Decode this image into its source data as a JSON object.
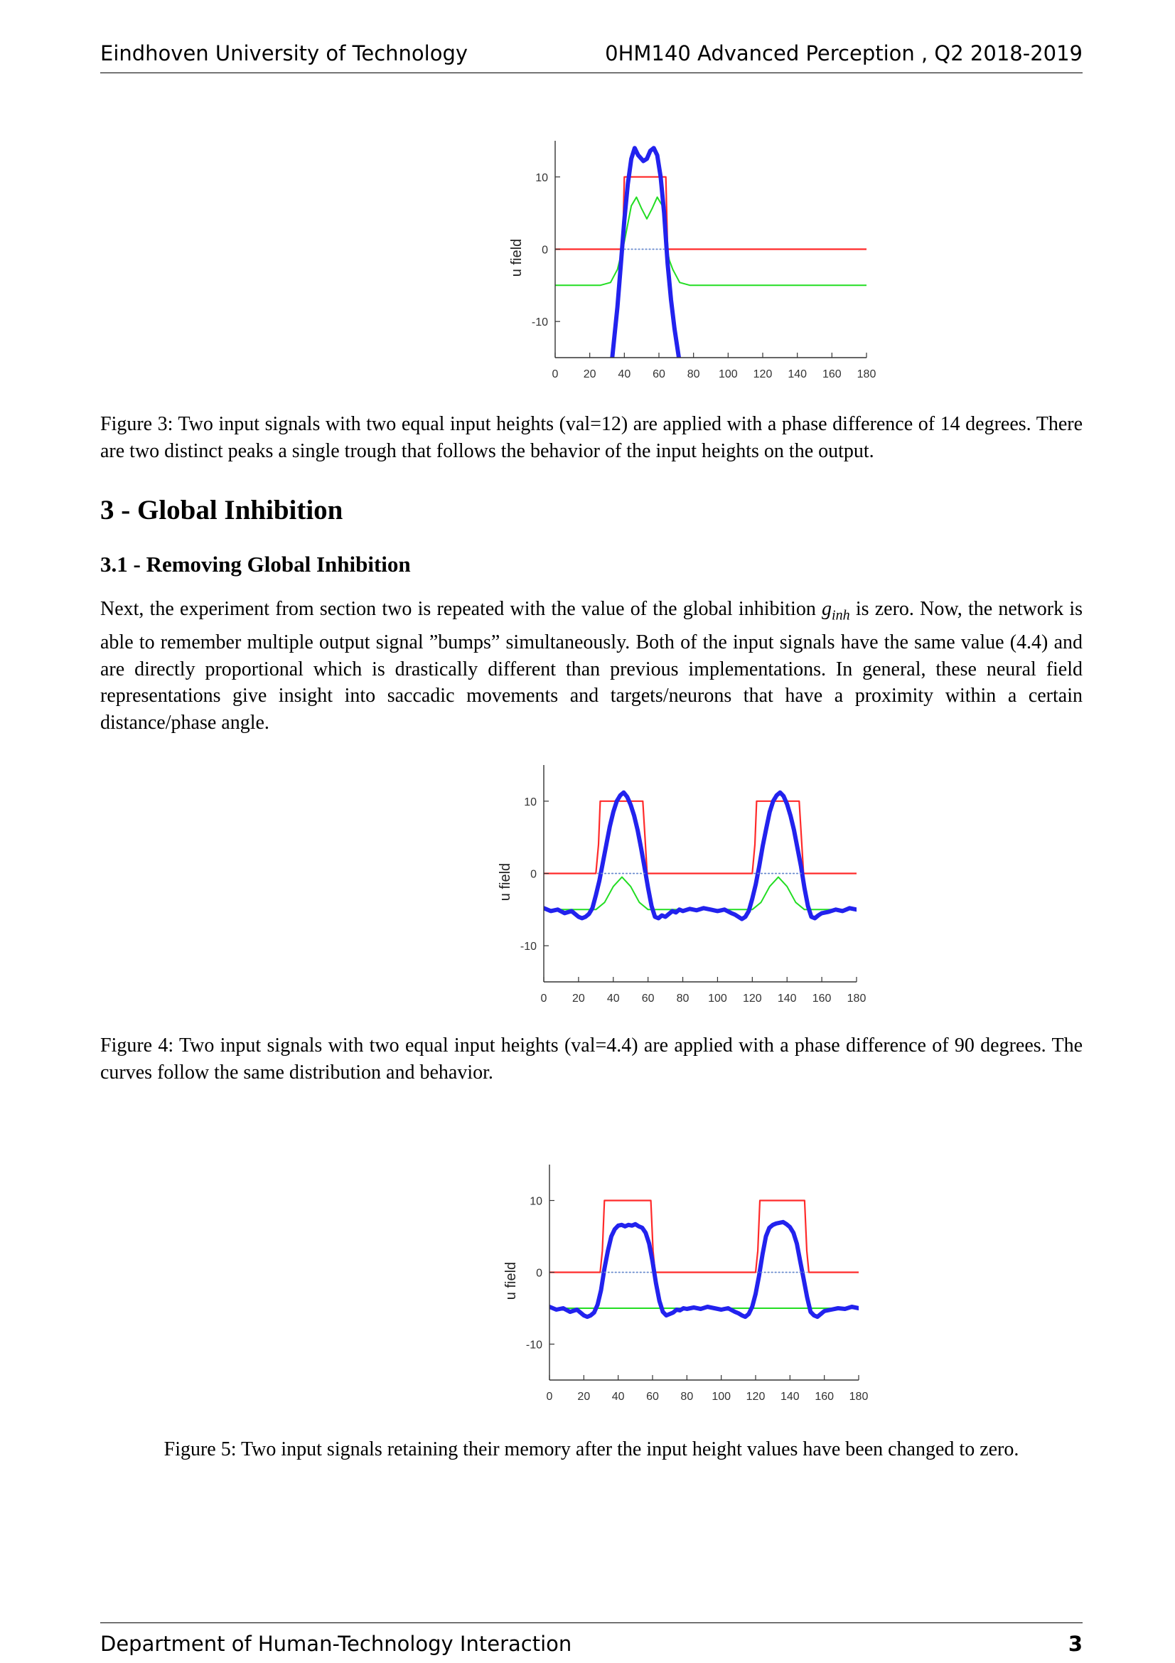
{
  "header": {
    "left": "Eindhoven University of Technology",
    "right": "0HM140 Advanced Perception , Q2 2018-2019"
  },
  "footer": {
    "left": "Department of Human-Technology Interaction",
    "page": "3"
  },
  "sections": {
    "section_title": "3 - Global Inhibition",
    "subsection_title": "3.1 - Removing Global Inhibition",
    "paragraph_pre": "Next, the experiment from section two is repeated with the value of the global inhibition ",
    "symbol_base": "g",
    "symbol_sub": "inh",
    "paragraph_post": " is zero.  Now, the network is able to remember multiple output signal ”bumps” simultaneously.  Both of the input signals have the same value (4.4) and are directly proportional which is drastically different than previous implementations.  In general, these neural field representations give insight into saccadic movements and targets/neurons that have a proximity within a certain distance/phase angle."
  },
  "captions": {
    "fig3": "Figure 3:  Two input signals with two equal input heights (val=12) are applied with a phase difference of 14 degrees. There are two distinct peaks a single trough that follows the behavior of the input heights on the output.",
    "fig4": "Figure 4:  Two input signals with two equal input heights (val=4.4) are applied with a phase difference of 90 degrees. The curves follow the same distribution and behavior.",
    "fig5": "Figure 5: Two input signals retaining their memory after the input height values have been changed to zero."
  },
  "chart_data": [
    {
      "type": "line",
      "ylabel": "u field",
      "xlim": [
        0,
        180
      ],
      "ylim": [
        -15,
        15
      ],
      "xticks": [
        "0",
        "20",
        "40",
        "60",
        "80",
        "100",
        "120",
        "140",
        "160",
        "180"
      ],
      "yticks": [
        "10",
        "0",
        "-10"
      ],
      "colors": {
        "input": "#ff2a2a",
        "output": "#2222ee",
        "activation": "#22dd22",
        "threshold": "#6688cc"
      },
      "series": [
        {
          "role": "input",
          "x": [
            0,
            39,
            40,
            64,
            65,
            180
          ],
          "y": [
            0,
            0,
            10,
            10,
            0,
            0
          ]
        },
        {
          "role": "activation",
          "x": [
            0,
            26,
            32,
            36,
            40,
            44,
            47,
            50,
            53,
            56,
            59,
            62,
            64,
            66,
            68,
            72,
            78,
            180
          ],
          "y": [
            -5,
            -5,
            -4.6,
            -2.8,
            1,
            6,
            7.2,
            5.6,
            4.2,
            5.6,
            7.2,
            6,
            1,
            -1.5,
            -2.8,
            -4.6,
            -5,
            -5
          ]
        },
        {
          "role": "output",
          "x": [
            33,
            36,
            38,
            40,
            42,
            44,
            46,
            48,
            51,
            53,
            55,
            57,
            59,
            61,
            63,
            65,
            67,
            69,
            71.5
          ],
          "y": [
            -15,
            -8,
            -2,
            4,
            9,
            12.5,
            14,
            13,
            12.2,
            12.5,
            13.6,
            14,
            13,
            10,
            5,
            -2,
            -7,
            -11,
            -15
          ]
        },
        {
          "role": "threshold",
          "x": [
            40,
            64
          ],
          "y": [
            0,
            0
          ]
        }
      ]
    },
    {
      "type": "line",
      "ylabel": "u field",
      "xlim": [
        0,
        180
      ],
      "ylim": [
        -15,
        15
      ],
      "xticks": [
        "0",
        "20",
        "40",
        "60",
        "80",
        "100",
        "120",
        "140",
        "160",
        "180"
      ],
      "yticks": [
        "10",
        "0",
        "-10"
      ],
      "colors": {
        "input": "#ff2a2a",
        "output": "#2222ee",
        "activation": "#22dd22",
        "threshold": "#6688cc"
      },
      "series": [
        {
          "role": "input",
          "x": [
            0,
            30,
            31.5,
            32.5,
            57,
            58.5,
            59.5,
            120,
            121.5,
            122.5,
            147,
            148.5,
            149.5,
            180
          ],
          "y": [
            0,
            0,
            4,
            10,
            10,
            4,
            0,
            0,
            4,
            10,
            10,
            4,
            0,
            0
          ]
        },
        {
          "role": "activation",
          "x": [
            0,
            30,
            35,
            40,
            45,
            50,
            55,
            60,
            120,
            125,
            130,
            135,
            140,
            145,
            150,
            180
          ],
          "y": [
            -5,
            -5,
            -4,
            -1.8,
            -0.5,
            -1.8,
            -4,
            -5,
            -5,
            -4,
            -1.8,
            -0.5,
            -1.8,
            -4,
            -5,
            -5
          ]
        },
        {
          "role": "output",
          "x": [
            0,
            4,
            8,
            12,
            16,
            20,
            22,
            24,
            26,
            28,
            30,
            32,
            34,
            36,
            38,
            40,
            42,
            44,
            46,
            48,
            50,
            52,
            54,
            56,
            58,
            60,
            62,
            64,
            66,
            68,
            70,
            72,
            74,
            76,
            78,
            80,
            84,
            88,
            92,
            96,
            100,
            104,
            108,
            110,
            112,
            114,
            116,
            118,
            120,
            122,
            124,
            126,
            128,
            130,
            132,
            134,
            136,
            138,
            140,
            142,
            144,
            146,
            148,
            150,
            152,
            154,
            156,
            158,
            160,
            164,
            168,
            172,
            176,
            180
          ],
          "y": [
            -4.8,
            -5.2,
            -5.0,
            -5.5,
            -5.2,
            -6.0,
            -6.2,
            -6.0,
            -5.6,
            -4.8,
            -3.0,
            -1.0,
            1.5,
            4.0,
            6.5,
            8.5,
            10.0,
            10.8,
            11.2,
            10.6,
            9.5,
            8.0,
            6.0,
            3.5,
            0.8,
            -2.0,
            -4.5,
            -6.0,
            -6.2,
            -5.8,
            -6.0,
            -5.6,
            -5.2,
            -5.4,
            -5.0,
            -5.2,
            -4.9,
            -5.1,
            -4.8,
            -5.0,
            -5.2,
            -5.0,
            -5.5,
            -5.7,
            -6.0,
            -6.3,
            -6.0,
            -5.2,
            -3.5,
            -1.5,
            1.0,
            3.8,
            6.2,
            8.5,
            10.0,
            10.8,
            11.2,
            10.7,
            9.6,
            8.0,
            6.0,
            3.5,
            1.0,
            -2.0,
            -4.5,
            -6.0,
            -6.2,
            -5.8,
            -5.5,
            -5.3,
            -5.0,
            -5.2,
            -4.8,
            -5.0
          ]
        },
        {
          "role": "threshold",
          "x": [
            31,
            58
          ],
          "y": [
            0,
            0
          ]
        },
        {
          "role": "threshold",
          "x": [
            121,
            148
          ],
          "y": [
            0,
            0
          ]
        }
      ]
    },
    {
      "type": "line",
      "ylabel": "u field",
      "xlim": [
        0,
        180
      ],
      "ylim": [
        -15,
        15
      ],
      "xticks": [
        "0",
        "20",
        "40",
        "60",
        "80",
        "100",
        "120",
        "140",
        "160",
        "180"
      ],
      "yticks": [
        "10",
        "0",
        "-10"
      ],
      "colors": {
        "input": "#ff2a2a",
        "output": "#2222ee",
        "activation": "#22dd22",
        "threshold": "#6688cc"
      },
      "series": [
        {
          "role": "input",
          "x": [
            0,
            29.5,
            30.8,
            32,
            59,
            60.3,
            61.5,
            120,
            121.3,
            122.5,
            148.5,
            149.8,
            151,
            180
          ],
          "y": [
            0,
            0,
            3,
            10,
            10,
            3,
            0,
            0,
            3,
            10,
            10,
            3,
            0,
            0
          ]
        },
        {
          "role": "activation",
          "x": [
            0,
            180
          ],
          "y": [
            -5,
            -5
          ]
        },
        {
          "role": "output",
          "x": [
            0,
            4,
            8,
            12,
            16,
            20,
            22,
            24,
            26,
            28,
            30,
            32,
            34,
            36,
            38,
            40,
            42,
            44,
            46,
            48,
            50,
            52,
            54,
            56,
            58,
            60,
            62,
            64,
            66,
            68,
            70,
            72,
            74,
            76,
            78,
            80,
            84,
            88,
            92,
            96,
            100,
            104,
            108,
            110,
            112,
            114,
            116,
            118,
            120,
            122,
            124,
            126,
            128,
            130,
            132,
            134,
            136,
            138,
            140,
            142,
            144,
            146,
            148,
            150,
            152,
            154,
            156,
            158,
            160,
            164,
            168,
            172,
            176,
            180
          ],
          "y": [
            -4.8,
            -5.2,
            -5.0,
            -5.5,
            -5.2,
            -6.0,
            -6.2,
            -6.0,
            -5.6,
            -4.5,
            -2.5,
            0.5,
            3.0,
            5.0,
            6.0,
            6.5,
            6.6,
            6.4,
            6.6,
            6.5,
            6.7,
            6.4,
            6.2,
            5.5,
            4.0,
            1.5,
            -1.5,
            -4.0,
            -5.5,
            -6.0,
            -5.8,
            -5.6,
            -5.2,
            -5.3,
            -5.0,
            -5.1,
            -4.9,
            -5.1,
            -4.8,
            -5.0,
            -5.2,
            -5.0,
            -5.5,
            -5.7,
            -6.0,
            -6.2,
            -5.8,
            -4.8,
            -3.0,
            -0.5,
            2.5,
            5.0,
            6.2,
            6.6,
            6.8,
            6.9,
            7.0,
            6.7,
            6.3,
            5.5,
            4.0,
            1.5,
            -1.0,
            -3.5,
            -5.5,
            -6.0,
            -6.2,
            -5.8,
            -5.4,
            -5.2,
            -5.0,
            -5.1,
            -4.8,
            -5.0
          ]
        },
        {
          "role": "threshold",
          "x": [
            30,
            61
          ],
          "y": [
            0,
            0
          ]
        },
        {
          "role": "threshold",
          "x": [
            121,
            150
          ],
          "y": [
            0,
            0
          ]
        }
      ]
    }
  ]
}
